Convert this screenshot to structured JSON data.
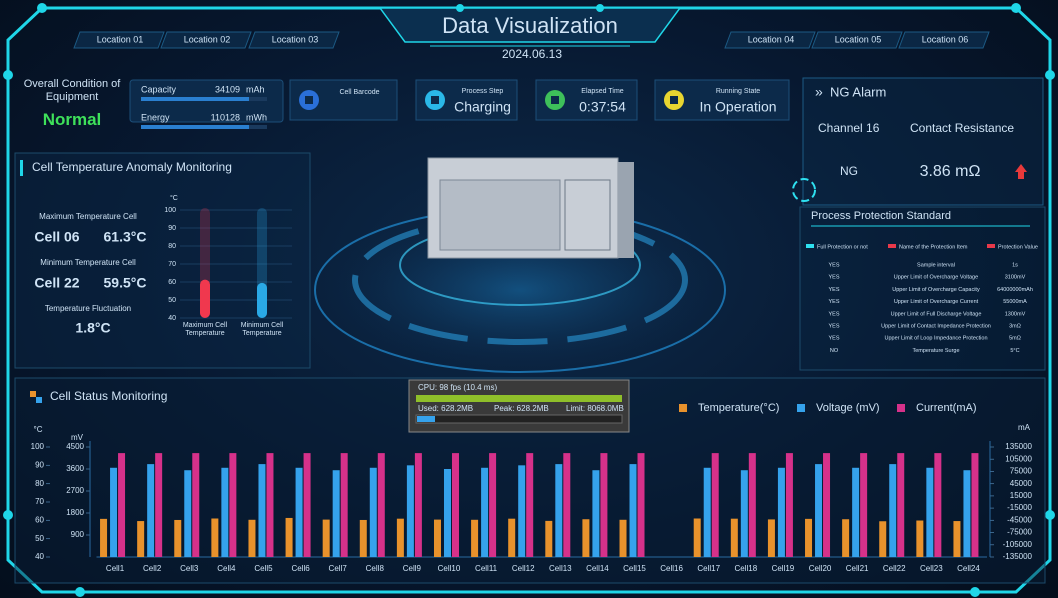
{
  "header": {
    "title": "Data Visualization",
    "date": "2024.06.13",
    "locations": [
      "Location 01",
      "Location 02",
      "Location 03",
      "Location 04",
      "Location 05",
      "Location 06"
    ]
  },
  "equipment": {
    "label": "Overall Condition of Equipment",
    "status": "Normal"
  },
  "metrics": [
    {
      "label": "Capacity",
      "value": "34109",
      "unit": "mAh"
    },
    {
      "label": "Energy",
      "value": "110128",
      "unit": "mWh"
    }
  ],
  "status_cards": [
    {
      "label": "Cell Barcode"
    },
    {
      "label": "Process Step",
      "value": "Charging"
    },
    {
      "label": "Elapsed Time",
      "value": "0:37:54"
    },
    {
      "label": "Running State",
      "value": "In Operation"
    }
  ],
  "ng_alarm": {
    "title": "NG Alarm",
    "channel": "Channel 16",
    "item": "Contact Resistance",
    "result": "NG",
    "value": "3.86 mΩ"
  },
  "protection": {
    "title": "Process Protection Standard",
    "legend": [
      "Full Protection or not",
      "Name of the Protection Item",
      "Protection Value"
    ],
    "rows": [
      [
        "YES",
        "Sample interval",
        "1s"
      ],
      [
        "YES",
        "Upper Limit of Overcharge Voltage",
        "3100mV"
      ],
      [
        "YES",
        "Upper Limit of Overcharge Capacity",
        "64000000mAh"
      ],
      [
        "YES",
        "Upper Limit of Overcharge Current",
        "55000mA"
      ],
      [
        "YES",
        "Upper Limit of Full Discharge Voltage",
        "1300mV"
      ],
      [
        "YES",
        "Upper Limit of Contact Impedance Protection",
        "3mΩ"
      ],
      [
        "YES",
        "Upper Limit of Loop Impedance Protection",
        "5mΩ"
      ],
      [
        "NO",
        "Temperature Surge",
        "5°C"
      ]
    ]
  },
  "temperature_panel": {
    "title": "Cell Temperature Anomaly Monitoring",
    "max_label": "Maximum Temperature Cell",
    "max_cell": "Cell 06",
    "max_value": "61.3°C",
    "min_label": "Minimum Temperature Cell",
    "min_cell": "Cell 22",
    "min_value": "59.5°C",
    "fluct_label": "Temperature Fluctuation",
    "fluct_value": "1.8°C"
  },
  "perf_overlay": {
    "fps": "CPU: 98 fps (10.4 ms)",
    "used": "Used: 628.2MB",
    "peak": "Peak: 628.2MB",
    "limit": "Limit: 8068.0MB"
  },
  "chart_data": [
    {
      "type": "thermometer",
      "y_label": "°C",
      "categories": [
        "Maximum Cell Temperature",
        "Minimum Cell Temperature"
      ],
      "values": [
        61.3,
        59.5
      ],
      "colors": [
        "#f0384e",
        "#2aa9e6"
      ],
      "ylim": [
        40,
        100
      ],
      "yticks": [
        40,
        50,
        60,
        70,
        80,
        90,
        100
      ],
      "grid": true
    },
    {
      "type": "bar",
      "title": "Cell Status Monitoring",
      "categories": [
        "Cell1",
        "Cell2",
        "Cell3",
        "Cell4",
        "Cell5",
        "Cell6",
        "Cell7",
        "Cell8",
        "Cell9",
        "Cell10",
        "Cell11",
        "Cell12",
        "Cell13",
        "Cell14",
        "Cell15",
        "Cell16",
        "Cell17",
        "Cell18",
        "Cell19",
        "Cell20",
        "Cell21",
        "Cell22",
        "Cell23",
        "Cell24"
      ],
      "series": [
        {
          "name": "Temperature(°C)",
          "color": "#e8922c",
          "axis": "y",
          "values": [
            60.8,
            59.6,
            60.2,
            61.0,
            60.3,
            61.3,
            60.4,
            60.2,
            60.9,
            60.4,
            60.3,
            60.9,
            59.7,
            60.6,
            60.3,
            null,
            61.0,
            60.9,
            60.5,
            60.8,
            60.6,
            59.5,
            59.9,
            59.6
          ]
        },
        {
          "name": "Voltage (mV)",
          "color": "#35a2ec",
          "axis": "y2",
          "values": [
            3650,
            3800,
            3550,
            3650,
            3800,
            3650,
            3550,
            3650,
            3750,
            3600,
            3650,
            3750,
            3800,
            3550,
            3800,
            null,
            3650,
            3550,
            3650,
            3800,
            3650,
            3800,
            3650,
            3550
          ]
        },
        {
          "name": "Current(mA)",
          "color": "#d6318a",
          "axis": "y3",
          "values": [
            120000,
            120000,
            120000,
            120000,
            120000,
            120000,
            120000,
            120000,
            120000,
            120000,
            120000,
            120000,
            120000,
            120000,
            120000,
            null,
            120000,
            120000,
            120000,
            120000,
            120000,
            120000,
            120000,
            120000
          ]
        }
      ],
      "y_label": "°C",
      "ylim": [
        40,
        100
      ],
      "yticks": [
        40,
        50,
        60,
        70,
        80,
        90,
        100
      ],
      "y2_label": "mV",
      "y2lim": [
        0,
        4500
      ],
      "y2ticks": [
        900,
        1800,
        2700,
        3600,
        4500
      ],
      "y3_label": "mA",
      "y3lim": [
        -135000,
        135000
      ],
      "y3ticks": [
        -135000,
        -105000,
        -75000,
        -45000,
        -15000,
        15000,
        45000,
        75000,
        105000,
        135000
      ]
    }
  ]
}
